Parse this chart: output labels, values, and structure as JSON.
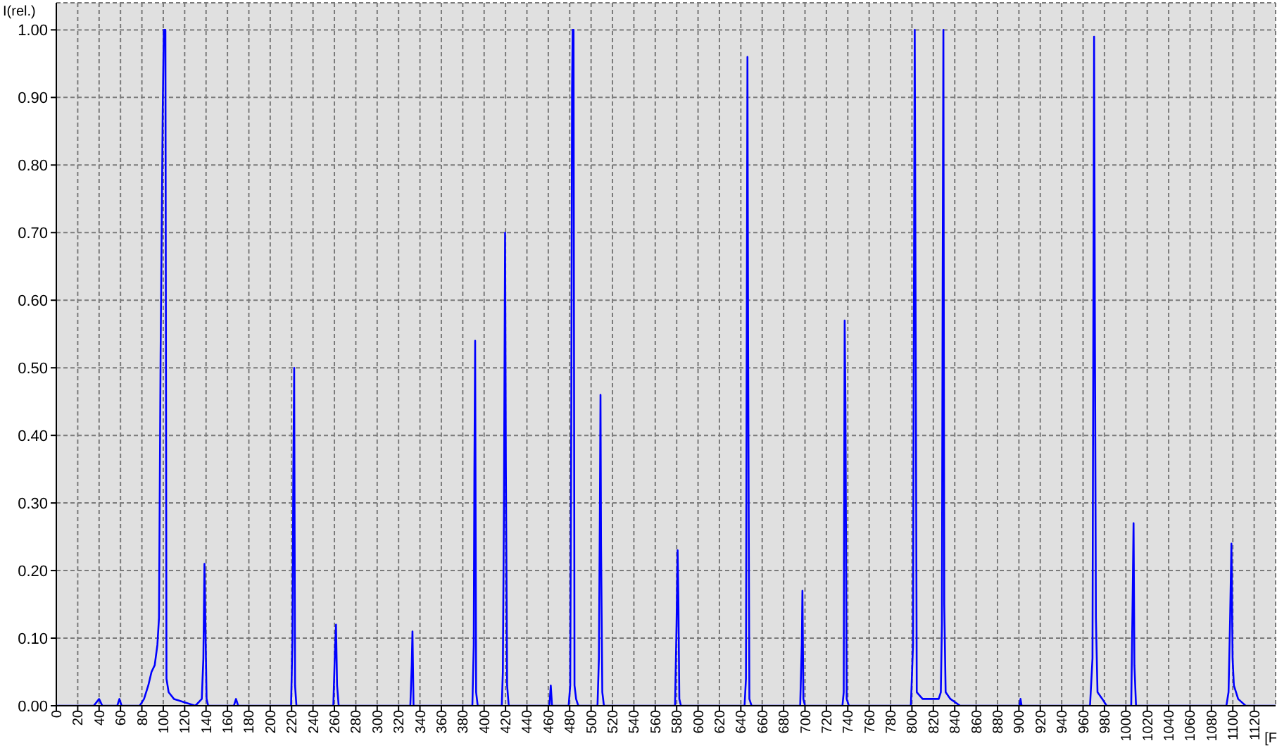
{
  "chart_data": {
    "type": "line",
    "xlabel": "[F",
    "ylabel": "I(rel.)",
    "color": "#0000ff",
    "grid": true,
    "xlim": [
      0,
      1140
    ],
    "ylim": [
      0,
      1.04
    ],
    "xticks": [
      0,
      20,
      40,
      60,
      80,
      100,
      120,
      140,
      160,
      180,
      200,
      220,
      240,
      260,
      280,
      300,
      320,
      340,
      360,
      380,
      400,
      420,
      440,
      460,
      480,
      500,
      520,
      540,
      560,
      580,
      600,
      620,
      640,
      660,
      680,
      700,
      720,
      740,
      760,
      780,
      800,
      820,
      840,
      860,
      880,
      900,
      920,
      940,
      960,
      980,
      1000,
      1020,
      1040,
      1060,
      1080,
      1100,
      1120
    ],
    "yticks": [
      {
        "value": 0,
        "label": "0.00"
      },
      {
        "value": 0.1,
        "label": "0.10"
      },
      {
        "value": 0.2,
        "label": "0.20"
      },
      {
        "value": 0.3,
        "label": "0.30"
      },
      {
        "value": 0.4,
        "label": "0.40"
      },
      {
        "value": 0.5,
        "label": "0.50"
      },
      {
        "value": 0.6,
        "label": "0.60"
      },
      {
        "value": 0.7,
        "label": "0.70"
      },
      {
        "value": 0.8,
        "label": "0.80"
      },
      {
        "value": 0.9,
        "label": "0.90"
      },
      {
        "value": 1,
        "label": "1.00"
      }
    ],
    "x": [
      0,
      35,
      40,
      43,
      57,
      59,
      61,
      78,
      82,
      86,
      89,
      92,
      94.5,
      96,
      97.5,
      99.5,
      100.5,
      102,
      103,
      105,
      110,
      130,
      136,
      137.5,
      138.5,
      139.5,
      140.5,
      142,
      166,
      168,
      170,
      219.5,
      220.8,
      221.6,
      222.4,
      223.2,
      224.5,
      259,
      260.5,
      261.5,
      262.5,
      264,
      331,
      332.3,
      333,
      334,
      389,
      390.3,
      390.9,
      391.6,
      392.5,
      394,
      416.5,
      417.5,
      418.5,
      419.6,
      420.3,
      421.5,
      423,
      461,
      462.3,
      463.5,
      479,
      480.5,
      481.5,
      482.2,
      482.8,
      483.6,
      484.5,
      486,
      488,
      506,
      507.3,
      508.2,
      508.8,
      509.3,
      510.5,
      512,
      578.5,
      579.9,
      580.9,
      581.6,
      582.5,
      584,
      643.5,
      644.8,
      645.5,
      646.2,
      646.8,
      648,
      650,
      695.5,
      697,
      697.6,
      698.5,
      700,
      735,
      736.2,
      736.6,
      737.1,
      737.8,
      739,
      741,
      799,
      801,
      801.8,
      802.6,
      803.5,
      804.5,
      810,
      825,
      827,
      828,
      828.7,
      829.4,
      830.2,
      831.5,
      836,
      845,
      900.5,
      901.5,
      902.5,
      966.5,
      968.8,
      970.3,
      971,
      972,
      973.5,
      978,
      982,
      1005,
      1006.2,
      1007.2,
      1008,
      1009.5,
      1094,
      1096,
      1097.5,
      1098.7,
      1099.8,
      1101,
      1105,
      1112,
      1140
    ],
    "values": [
      0,
      0,
      0.01,
      0,
      0,
      0.01,
      0,
      0,
      0.01,
      0.03,
      0.05,
      0.06,
      0.09,
      0.13,
      0.52,
      0.88,
      1,
      1,
      0.04,
      0.02,
      0.01,
      0,
      0.01,
      0.07,
      0.21,
      0.11,
      0.01,
      0,
      0,
      0.01,
      0,
      0,
      0.1,
      0.34,
      0.5,
      0.03,
      0,
      0,
      0.08,
      0.12,
      0.03,
      0,
      0,
      0.06,
      0.11,
      0,
      0,
      0.09,
      0.35,
      0.54,
      0.02,
      0,
      0,
      0.05,
      0.29,
      0.7,
      0.36,
      0.03,
      0,
      0,
      0.03,
      0,
      0,
      0.03,
      0.44,
      0.91,
      1,
      1,
      0.03,
      0.01,
      0,
      0,
      0.07,
      0.28,
      0.46,
      0.24,
      0.02,
      0,
      0,
      0.12,
      0.23,
      0.16,
      0.01,
      0,
      0,
      0.04,
      0.52,
      0.96,
      0.54,
      0.01,
      0,
      0,
      0.09,
      0.17,
      0.01,
      0,
      0,
      0.02,
      0.3,
      0.57,
      0.45,
      0.01,
      0,
      0,
      0.09,
      0.58,
      1,
      0.55,
      0.02,
      0.01,
      0.01,
      0.02,
      0.12,
      0.61,
      1,
      0.15,
      0.02,
      0.01,
      0,
      0,
      0.01,
      0,
      0,
      0.07,
      0.99,
      0.59,
      0.13,
      0.02,
      0.01,
      0,
      0,
      0.14,
      0.27,
      0.06,
      0,
      0,
      0.02,
      0.13,
      0.24,
      0.07,
      0.03,
      0.01,
      0,
      0
    ]
  }
}
